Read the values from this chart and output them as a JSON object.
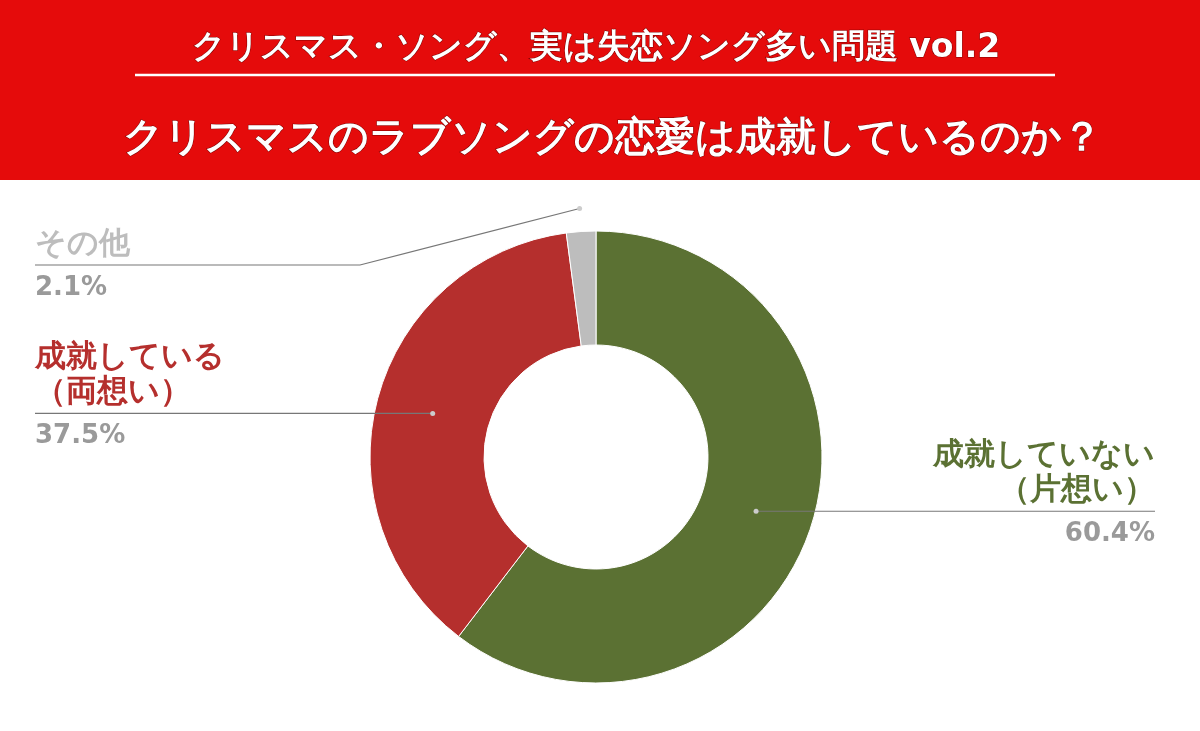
{
  "chart_data": {
    "type": "donut",
    "title": "クリスマス・ソング、実は失恋ソング多い問題 vol.2",
    "subtitle": "クリスマスのラブソングの恋愛は成就しているのか？",
    "categories": [
      "成就していない（片想い）",
      "成就している（両想い）",
      "その他"
    ],
    "values": [
      60.4,
      37.5,
      2.1
    ],
    "colors": [
      "#5b7133",
      "#b52f2d",
      "#bdbdbd"
    ],
    "value_labels": [
      "60.4%",
      "37.5%",
      "2.1%"
    ]
  }
}
